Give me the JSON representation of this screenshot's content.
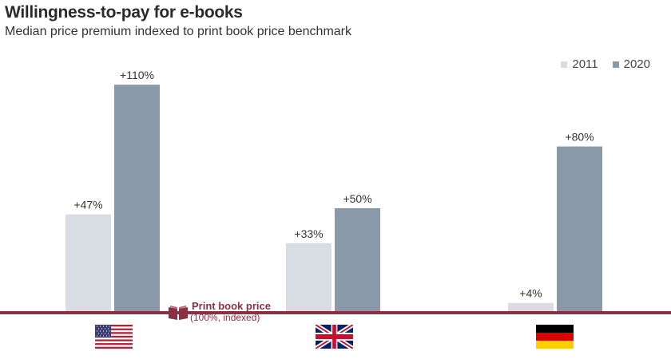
{
  "title": "Willingness-to-pay for e-books",
  "subtitle": "Median price premium indexed to print book price benchmark",
  "legend": [
    {
      "label": "2011",
      "color": "#d8dde3"
    },
    {
      "label": "2020",
      "color": "#8999a8"
    }
  ],
  "reference": {
    "label": "Print book price",
    "sublabel": "(100%, indexed)",
    "color": "#8a3045",
    "icon": "book-icon"
  },
  "chart_data": {
    "type": "bar",
    "categories": [
      "United States",
      "United Kingdom",
      "Germany"
    ],
    "category_icons": [
      "us-flag-icon",
      "uk-flag-icon",
      "germany-flag-icon"
    ],
    "series": [
      {
        "name": "2011",
        "values": [
          47,
          33,
          4
        ],
        "labels": [
          "+47%",
          "+33%",
          "+4%"
        ],
        "color": "#d8dde3"
      },
      {
        "name": "2020",
        "values": [
          110,
          50,
          80
        ],
        "labels": [
          "+110%",
          "+50%",
          "+80%"
        ],
        "color": "#8999a8"
      }
    ],
    "title": "Willingness-to-pay for e-books",
    "ylabel": "",
    "xlabel": "",
    "ylim": [
      0,
      120
    ],
    "grid": false,
    "legend_position": "top-right"
  }
}
